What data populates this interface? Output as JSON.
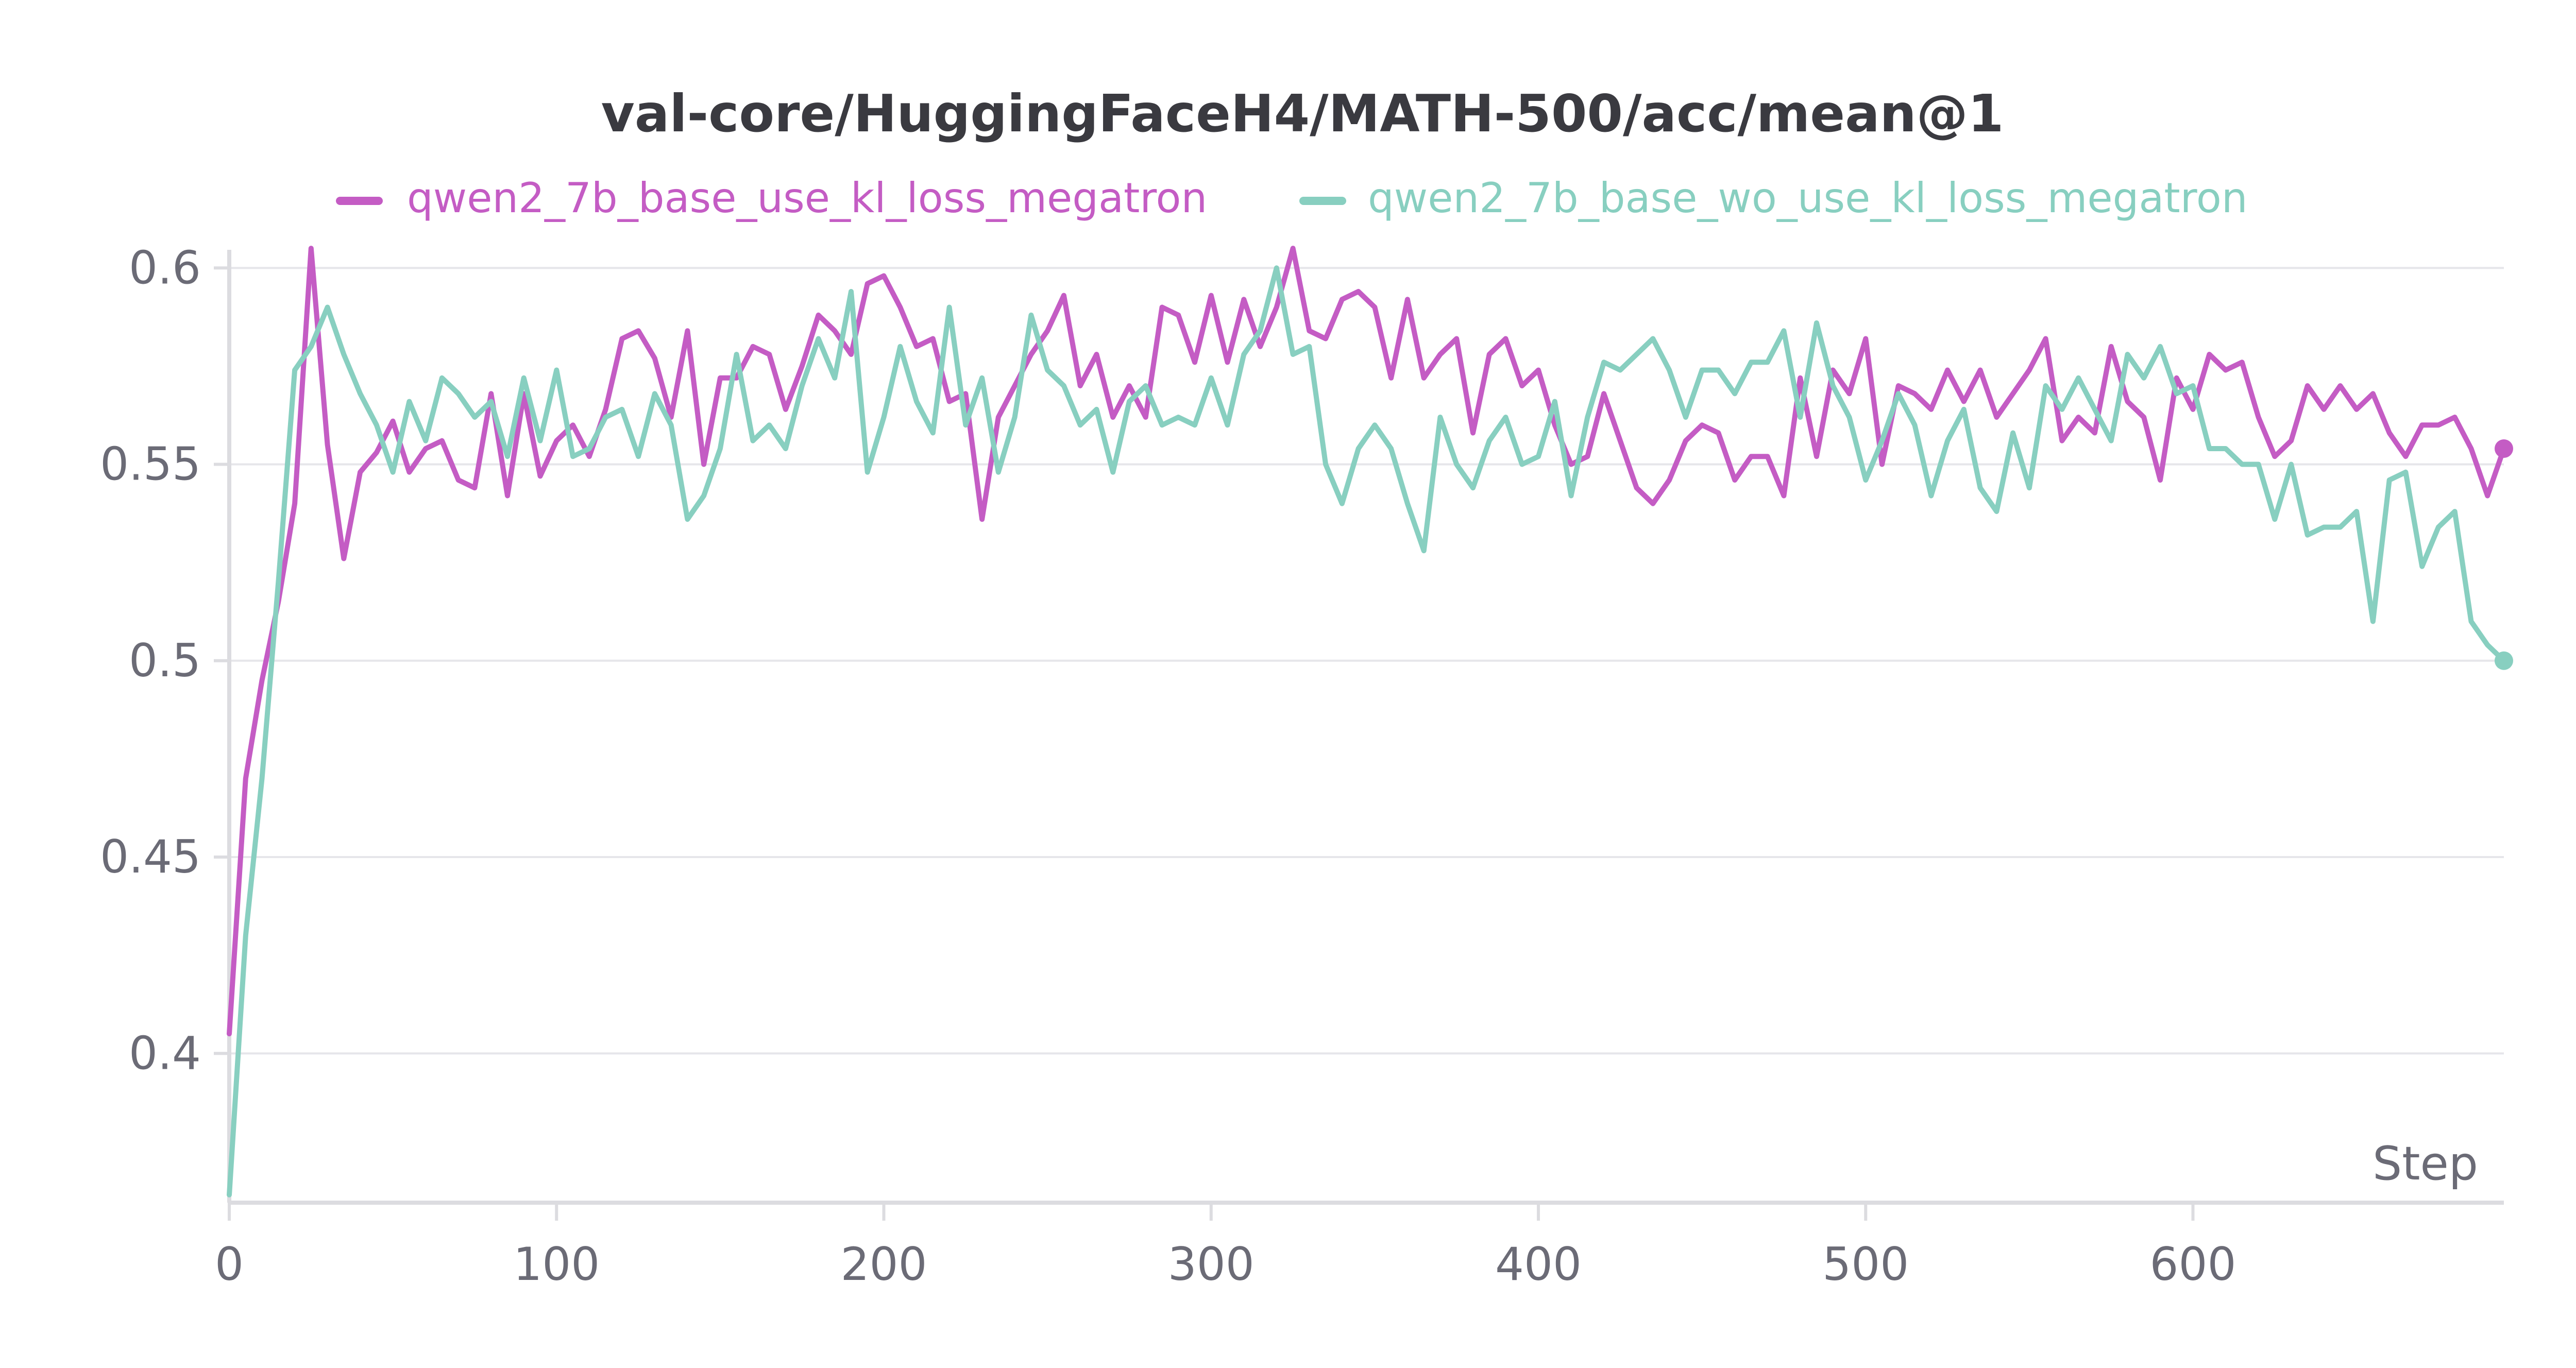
{
  "chart_data": {
    "type": "line",
    "title": "val-core/HuggingFaceH4/MATH-500/acc/mean@1",
    "xlabel": "Step",
    "ylabel": "",
    "xlim": [
      0,
      695
    ],
    "ylim": [
      0.362,
      0.602
    ],
    "x_ticks": [
      0,
      100,
      200,
      300,
      400,
      500,
      600
    ],
    "y_ticks": [
      0.4,
      0.45,
      0.5,
      0.55,
      0.6
    ],
    "x_tick_labels": [
      "0",
      "100",
      "200",
      "300",
      "400",
      "500",
      "600"
    ],
    "y_tick_labels": [
      "0.4",
      "0.45",
      "0.5",
      "0.55",
      "0.6"
    ],
    "grid": true,
    "legend_position": "top",
    "series": [
      {
        "name": "qwen2_7b_base_use_kl_loss_megatron",
        "color": "#c45cc4",
        "x": [
          0,
          5,
          10,
          15,
          20,
          25,
          30,
          35,
          40,
          45,
          50,
          55,
          60,
          65,
          70,
          75,
          80,
          85,
          90,
          95,
          100,
          105,
          110,
          115,
          120,
          125,
          130,
          135,
          140,
          145,
          150,
          155,
          160,
          165,
          170,
          175,
          180,
          185,
          190,
          195,
          200,
          205,
          210,
          215,
          220,
          225,
          230,
          235,
          240,
          245,
          250,
          255,
          260,
          265,
          270,
          275,
          280,
          285,
          290,
          295,
          300,
          305,
          310,
          315,
          320,
          325,
          330,
          335,
          340,
          345,
          350,
          355,
          360,
          365,
          370,
          375,
          380,
          385,
          390,
          395,
          400,
          405,
          410,
          415,
          420,
          425,
          430,
          435,
          440,
          445,
          450,
          455,
          460,
          465,
          470,
          475,
          480,
          485,
          490,
          495,
          500,
          505,
          510,
          515,
          520,
          525,
          530,
          535,
          540,
          545,
          550,
          555,
          560,
          565,
          570,
          575,
          580,
          585,
          590,
          595,
          600,
          605,
          610,
          615,
          620,
          625,
          630,
          635,
          640,
          645,
          650,
          655,
          660,
          665,
          670,
          675,
          680,
          685,
          690,
          695
        ],
        "y": [
          0.405,
          0.47,
          0.495,
          0.515,
          0.54,
          0.605,
          0.555,
          0.526,
          0.548,
          0.553,
          0.561,
          0.548,
          0.554,
          0.556,
          0.546,
          0.544,
          0.568,
          0.542,
          0.568,
          0.547,
          0.556,
          0.56,
          0.552,
          0.564,
          0.582,
          0.584,
          0.577,
          0.562,
          0.584,
          0.55,
          0.572,
          0.572,
          0.58,
          0.578,
          0.564,
          0.575,
          0.588,
          0.584,
          0.578,
          0.596,
          0.598,
          0.59,
          0.58,
          0.582,
          0.566,
          0.568,
          0.536,
          0.562,
          0.57,
          0.578,
          0.584,
          0.593,
          0.57,
          0.578,
          0.562,
          0.57,
          0.562,
          0.59,
          0.588,
          0.576,
          0.593,
          0.576,
          0.592,
          0.58,
          0.59,
          0.605,
          0.584,
          0.582,
          0.592,
          0.594,
          0.59,
          0.572,
          0.592,
          0.572,
          0.578,
          0.582,
          0.558,
          0.578,
          0.582,
          0.57,
          0.574,
          0.56,
          0.55,
          0.552,
          0.568,
          0.556,
          0.544,
          0.54,
          0.546,
          0.556,
          0.56,
          0.558,
          0.546,
          0.552,
          0.552,
          0.542,
          0.572,
          0.552,
          0.574,
          0.568,
          0.582,
          0.55,
          0.57,
          0.568,
          0.564,
          0.574,
          0.566,
          0.574,
          0.562,
          0.568,
          0.574,
          0.582,
          0.556,
          0.562,
          0.558,
          0.58,
          0.566,
          0.562,
          0.546,
          0.572,
          0.564,
          0.578,
          0.574,
          0.576,
          0.562,
          0.552,
          0.556,
          0.57,
          0.564,
          0.57,
          0.564,
          0.568,
          0.558,
          0.552,
          0.56,
          0.56,
          0.562,
          0.554,
          0.542,
          0.554
        ]
      },
      {
        "name": "qwen2_7b_base_wo_use_kl_loss_megatron",
        "color": "#88cfc0",
        "x": [
          0,
          5,
          10,
          15,
          20,
          25,
          30,
          35,
          40,
          45,
          50,
          55,
          60,
          65,
          70,
          75,
          80,
          85,
          90,
          95,
          100,
          105,
          110,
          115,
          120,
          125,
          130,
          135,
          140,
          145,
          150,
          155,
          160,
          165,
          170,
          175,
          180,
          185,
          190,
          195,
          200,
          205,
          210,
          215,
          220,
          225,
          230,
          235,
          240,
          245,
          250,
          255,
          260,
          265,
          270,
          275,
          280,
          285,
          290,
          295,
          300,
          305,
          310,
          315,
          320,
          325,
          330,
          335,
          340,
          345,
          350,
          355,
          360,
          365,
          370,
          375,
          380,
          385,
          390,
          395,
          400,
          405,
          410,
          415,
          420,
          425,
          430,
          435,
          440,
          445,
          450,
          455,
          460,
          465,
          470,
          475,
          480,
          485,
          490,
          495,
          500,
          505,
          510,
          515,
          520,
          525,
          530,
          535,
          540,
          545,
          550,
          555,
          560,
          565,
          570,
          575,
          580,
          585,
          590,
          595,
          600,
          605,
          610,
          615,
          620,
          625,
          630,
          635,
          640,
          645,
          650,
          655,
          660,
          665,
          670,
          675,
          680,
          685,
          690,
          695
        ],
        "y": [
          0.364,
          0.43,
          0.47,
          0.52,
          0.574,
          0.58,
          0.59,
          0.578,
          0.568,
          0.56,
          0.548,
          0.566,
          0.556,
          0.572,
          0.568,
          0.562,
          0.566,
          0.552,
          0.572,
          0.556,
          0.574,
          0.552,
          0.554,
          0.562,
          0.564,
          0.552,
          0.568,
          0.56,
          0.536,
          0.542,
          0.554,
          0.578,
          0.556,
          0.56,
          0.554,
          0.57,
          0.582,
          0.572,
          0.594,
          0.548,
          0.562,
          0.58,
          0.566,
          0.558,
          0.59,
          0.56,
          0.572,
          0.548,
          0.562,
          0.588,
          0.574,
          0.57,
          0.56,
          0.564,
          0.548,
          0.566,
          0.57,
          0.56,
          0.562,
          0.56,
          0.572,
          0.56,
          0.578,
          0.584,
          0.6,
          0.578,
          0.58,
          0.55,
          0.54,
          0.554,
          0.56,
          0.554,
          0.54,
          0.528,
          0.562,
          0.55,
          0.544,
          0.556,
          0.562,
          0.55,
          0.552,
          0.566,
          0.542,
          0.562,
          0.576,
          0.574,
          0.578,
          0.582,
          0.574,
          0.562,
          0.574,
          0.574,
          0.568,
          0.576,
          0.576,
          0.584,
          0.562,
          0.586,
          0.57,
          0.562,
          0.546,
          0.556,
          0.568,
          0.56,
          0.542,
          0.556,
          0.564,
          0.544,
          0.538,
          0.558,
          0.544,
          0.57,
          0.564,
          0.572,
          0.564,
          0.556,
          0.578,
          0.572,
          0.58,
          0.568,
          0.57,
          0.554,
          0.554,
          0.55,
          0.55,
          0.536,
          0.55,
          0.532,
          0.534,
          0.534,
          0.538,
          0.51,
          0.546,
          0.548,
          0.524,
          0.534,
          0.538,
          0.51,
          0.504,
          0.5
        ]
      }
    ]
  }
}
